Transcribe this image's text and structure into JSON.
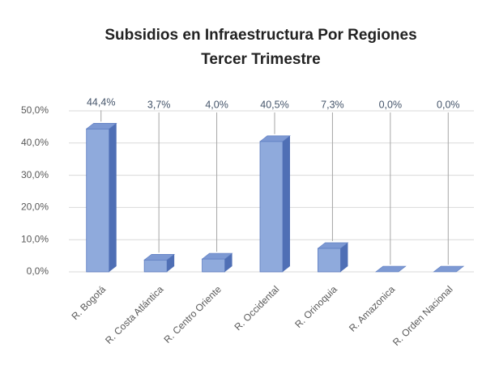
{
  "chart_data": {
    "type": "bar3d",
    "title": "Subsidios en Infraestructura  Por Regiones",
    "subtitle": "Tercer Trimestre",
    "categories": [
      "R. Bogotá",
      "R. Costa Atlántica",
      "R. Centro Oriente",
      "R. Occidental",
      "R. Orinoquia",
      "R. Amazonica",
      "R. Orden Nacional"
    ],
    "values": [
      44.4,
      3.7,
      4.0,
      40.5,
      7.3,
      0,
      0
    ],
    "value_labels": [
      "44,4%",
      "3,7%",
      "4,0%",
      "40,5%",
      "7,3%",
      "0,0%",
      "0,0%"
    ],
    "color": "#8faadc",
    "ylim": [
      0,
      50
    ],
    "yticks": [
      {
        "value": 0,
        "label": "0,0%"
      },
      {
        "value": 10,
        "label": "10,0%"
      },
      {
        "value": 20,
        "label": "20,0%"
      },
      {
        "value": 30,
        "label": "30,0%"
      },
      {
        "value": 40,
        "label": "40,0%"
      },
      {
        "value": 50,
        "label": "50,0%"
      }
    ],
    "grid": true
  }
}
